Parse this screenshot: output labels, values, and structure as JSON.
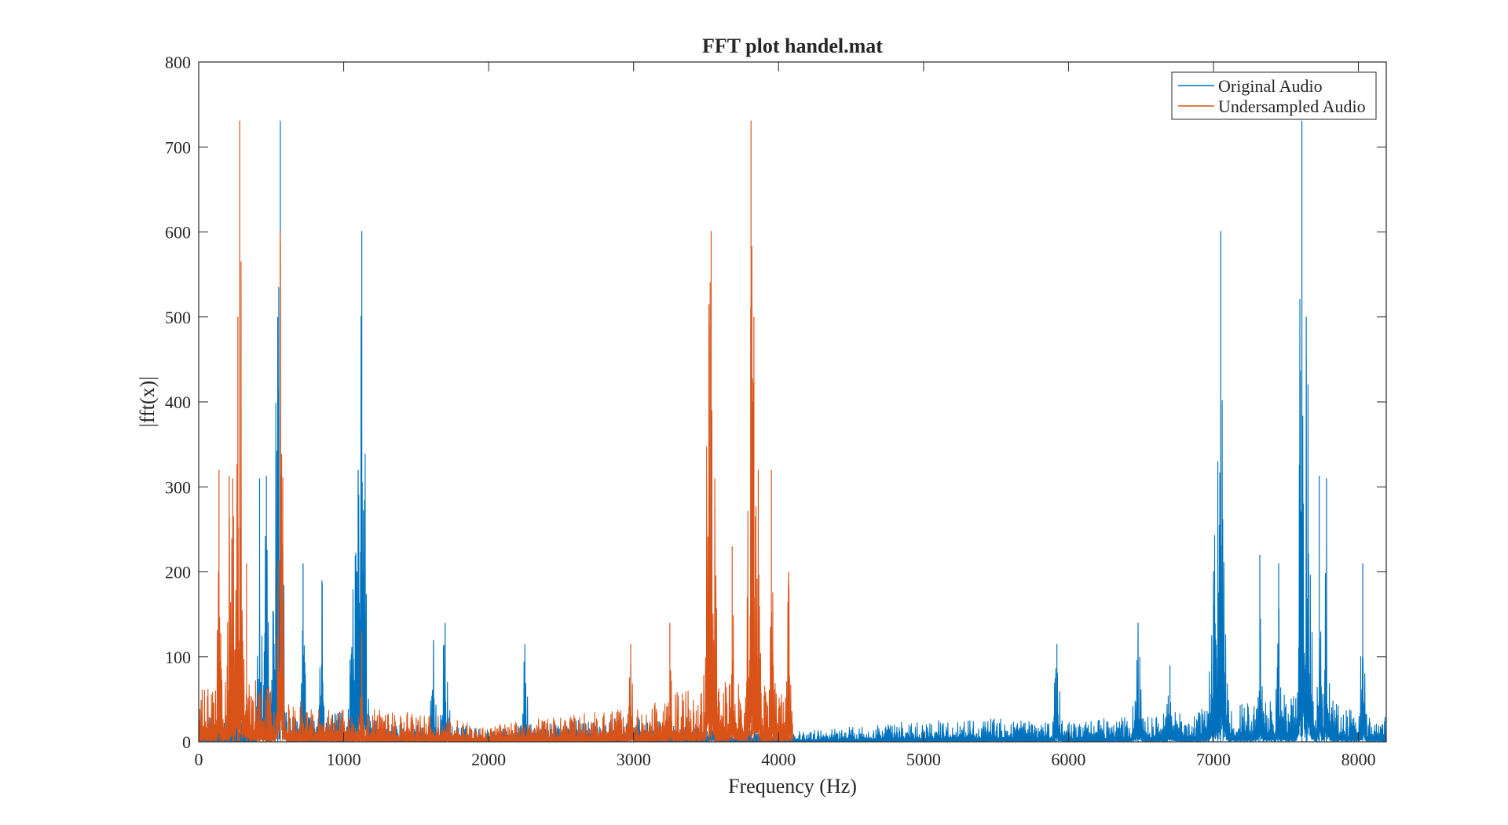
{
  "chart_data": {
    "type": "line",
    "title": "FFT plot handel.mat",
    "xlabel": "Frequency (Hz)",
    "ylabel": "|fft(x)|",
    "xlim": [
      0,
      8192
    ],
    "ylim": [
      0,
      800
    ],
    "xticks": [
      0,
      1000,
      2000,
      3000,
      4000,
      5000,
      6000,
      7000,
      8000
    ],
    "yticks": [
      0,
      100,
      200,
      300,
      400,
      500,
      600,
      700,
      800
    ],
    "grid": false,
    "legend_position": "top-right",
    "series": [
      {
        "name": "Original Audio",
        "color": "#0072BD",
        "x_range": [
          0,
          8192
        ],
        "mirror_about": 8192,
        "noise_floor": [
          [
            0,
            30
          ],
          [
            800,
            30
          ],
          [
            1000,
            35
          ],
          [
            1300,
            25
          ],
          [
            1800,
            20
          ],
          [
            2000,
            15
          ],
          [
            2500,
            25
          ],
          [
            3000,
            30
          ],
          [
            3300,
            20
          ],
          [
            3800,
            15
          ],
          [
            4100,
            12
          ],
          [
            4500,
            18
          ],
          [
            5000,
            25
          ],
          [
            5500,
            28
          ],
          [
            6000,
            25
          ],
          [
            6500,
            30
          ],
          [
            7000,
            40
          ],
          [
            7600,
            60
          ],
          [
            8192,
            30
          ]
        ],
        "peaks": [
          {
            "x": 563,
            "y": 731,
            "width": 18
          },
          {
            "x": 545,
            "y": 500,
            "width": 25
          },
          {
            "x": 1125,
            "y": 601,
            "width": 22
          },
          {
            "x": 1100,
            "y": 320,
            "width": 40
          },
          {
            "x": 467,
            "y": 313,
            "width": 12
          },
          {
            "x": 420,
            "y": 310,
            "width": 12
          },
          {
            "x": 720,
            "y": 210,
            "width": 12
          },
          {
            "x": 850,
            "y": 190,
            "width": 12
          },
          {
            "x": 1700,
            "y": 140,
            "width": 20
          },
          {
            "x": 1620,
            "y": 120,
            "width": 15
          },
          {
            "x": 2250,
            "y": 115,
            "width": 15
          },
          {
            "x": 2980,
            "y": 90,
            "width": 12
          },
          {
            "x": 3540,
            "y": 70,
            "width": 20
          },
          {
            "x": 5920,
            "y": 115,
            "width": 20
          },
          {
            "x": 6480,
            "y": 140,
            "width": 25
          },
          {
            "x": 6700,
            "y": 90,
            "width": 20
          },
          {
            "x": 7050,
            "y": 601,
            "width": 22
          },
          {
            "x": 7030,
            "y": 330,
            "width": 40
          },
          {
            "x": 7320,
            "y": 220,
            "width": 15
          },
          {
            "x": 7450,
            "y": 210,
            "width": 15
          },
          {
            "x": 7610,
            "y": 731,
            "width": 18
          },
          {
            "x": 7640,
            "y": 500,
            "width": 25
          },
          {
            "x": 7730,
            "y": 313,
            "width": 12
          },
          {
            "x": 7780,
            "y": 310,
            "width": 12
          },
          {
            "x": 8030,
            "y": 210,
            "width": 12
          }
        ]
      },
      {
        "name": "Undersampled Audio",
        "color": "#D95319",
        "x_range": [
          0,
          4096
        ],
        "noise_floor": [
          [
            0,
            60
          ],
          [
            300,
            90
          ],
          [
            600,
            55
          ],
          [
            1000,
            40
          ],
          [
            1500,
            35
          ],
          [
            2000,
            20
          ],
          [
            2500,
            30
          ],
          [
            3000,
            40
          ],
          [
            3300,
            60
          ],
          [
            3600,
            70
          ],
          [
            3900,
            75
          ],
          [
            4096,
            70
          ]
        ],
        "peaks": [
          {
            "x": 283,
            "y": 731,
            "width": 16
          },
          {
            "x": 270,
            "y": 500,
            "width": 20
          },
          {
            "x": 563,
            "y": 601,
            "width": 16
          },
          {
            "x": 140,
            "y": 320,
            "width": 10
          },
          {
            "x": 210,
            "y": 313,
            "width": 10
          },
          {
            "x": 235,
            "y": 310,
            "width": 10
          },
          {
            "x": 330,
            "y": 210,
            "width": 12
          },
          {
            "x": 1125,
            "y": 130,
            "width": 12
          },
          {
            "x": 2980,
            "y": 115,
            "width": 12
          },
          {
            "x": 3250,
            "y": 140,
            "width": 15
          },
          {
            "x": 3535,
            "y": 601,
            "width": 16
          },
          {
            "x": 3520,
            "y": 515,
            "width": 20
          },
          {
            "x": 3560,
            "y": 310,
            "width": 12
          },
          {
            "x": 3680,
            "y": 230,
            "width": 12
          },
          {
            "x": 3810,
            "y": 731,
            "width": 16
          },
          {
            "x": 3830,
            "y": 500,
            "width": 20
          },
          {
            "x": 3860,
            "y": 320,
            "width": 12
          },
          {
            "x": 3950,
            "y": 320,
            "width": 10
          },
          {
            "x": 4070,
            "y": 200,
            "width": 10
          }
        ]
      }
    ]
  }
}
